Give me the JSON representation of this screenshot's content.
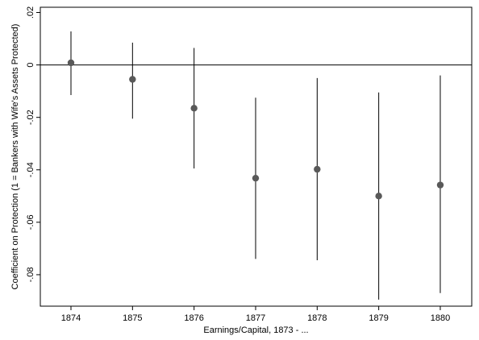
{
  "chart_data": {
    "type": "scatter",
    "title": "",
    "xlabel": "Earnings/Capital, 1873 - ...",
    "ylabel": "Coefficient on Protection (1 = Bankers with Wife's Assets Protected)",
    "categories": [
      "1874",
      "1875",
      "1876",
      "1877",
      "1878",
      "1879",
      "1880"
    ],
    "series": [
      {
        "estimates": [
          0.0008,
          -0.0055,
          -0.0165,
          -0.0432,
          -0.0398,
          -0.05,
          -0.0458
        ],
        "ci_lower": [
          -0.0115,
          -0.0205,
          -0.0395,
          -0.074,
          -0.0745,
          -0.0895,
          -0.087
        ],
        "ci_upper": [
          0.0128,
          0.0085,
          0.0065,
          -0.0125,
          -0.005,
          -0.0105,
          -0.004
        ]
      }
    ],
    "yticks": [
      0.02,
      0,
      -0.02,
      -0.04,
      -0.06,
      -0.08
    ],
    "ytick_labels": [
      ".02",
      "0",
      "-.02",
      "-.04",
      "-.06",
      "-.08"
    ],
    "ylim": [
      -0.092,
      0.022
    ],
    "reference_line": 0,
    "grid": false,
    "legend": "none",
    "marker_color": "#595959",
    "line_color": "#000000"
  }
}
